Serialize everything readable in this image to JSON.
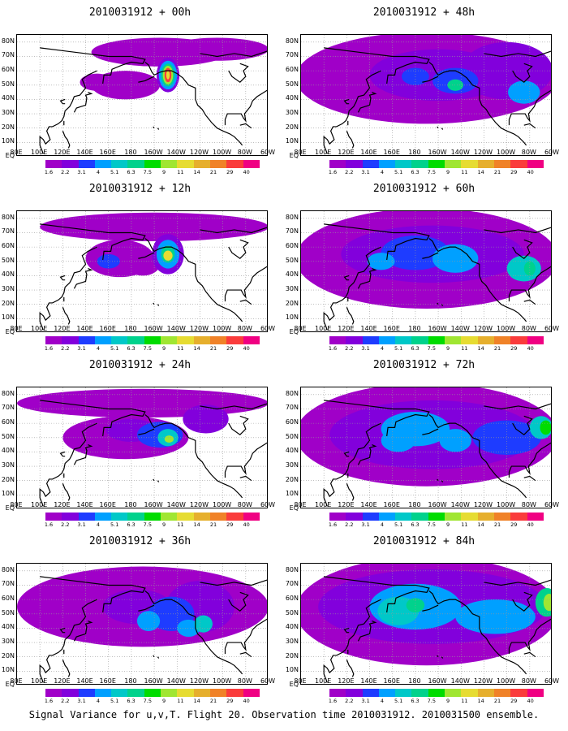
{
  "panels": [
    {
      "id": "p00",
      "title": "2010031912 + 00h",
      "hour": 0
    },
    {
      "id": "p48",
      "title": "2010031912 + 48h",
      "hour": 48
    },
    {
      "id": "p12",
      "title": "2010031912 + 12h",
      "hour": 12
    },
    {
      "id": "p60",
      "title": "2010031912 + 60h",
      "hour": 60
    },
    {
      "id": "p24",
      "title": "2010031912 + 24h",
      "hour": 24
    },
    {
      "id": "p72",
      "title": "2010031912 + 72h",
      "hour": 72
    },
    {
      "id": "p36",
      "title": "2010031912 + 36h",
      "hour": 36
    },
    {
      "id": "p84",
      "title": "2010031912 + 84h",
      "hour": 84
    }
  ],
  "lat_labels": [
    "80N",
    "70N",
    "60N",
    "50N",
    "40N",
    "30N",
    "20N",
    "10N",
    "EQ"
  ],
  "lon_labels": [
    "80E",
    "100E",
    "120E",
    "140E",
    "160E",
    "180",
    "160W",
    "140W",
    "120W",
    "100W",
    "80W",
    "60W"
  ],
  "colorbar": {
    "levels": [
      "1.6",
      "2.2",
      "3.1",
      "4",
      "5.1",
      "6.3",
      "7.5",
      "9",
      "11",
      "14",
      "21",
      "29",
      "40"
    ],
    "colors": [
      "#a000c8",
      "#8200dc",
      "#1e3cff",
      "#00a0ff",
      "#00c8c8",
      "#00d28c",
      "#00dc00",
      "#a0e632",
      "#e6dc32",
      "#e6af2d",
      "#f08228",
      "#fa3c3c",
      "#f00082"
    ]
  },
  "caption": "Signal Variance for u,v,T. Flight 20. Observation time 2010031912. 2010031500 ensemble."
}
